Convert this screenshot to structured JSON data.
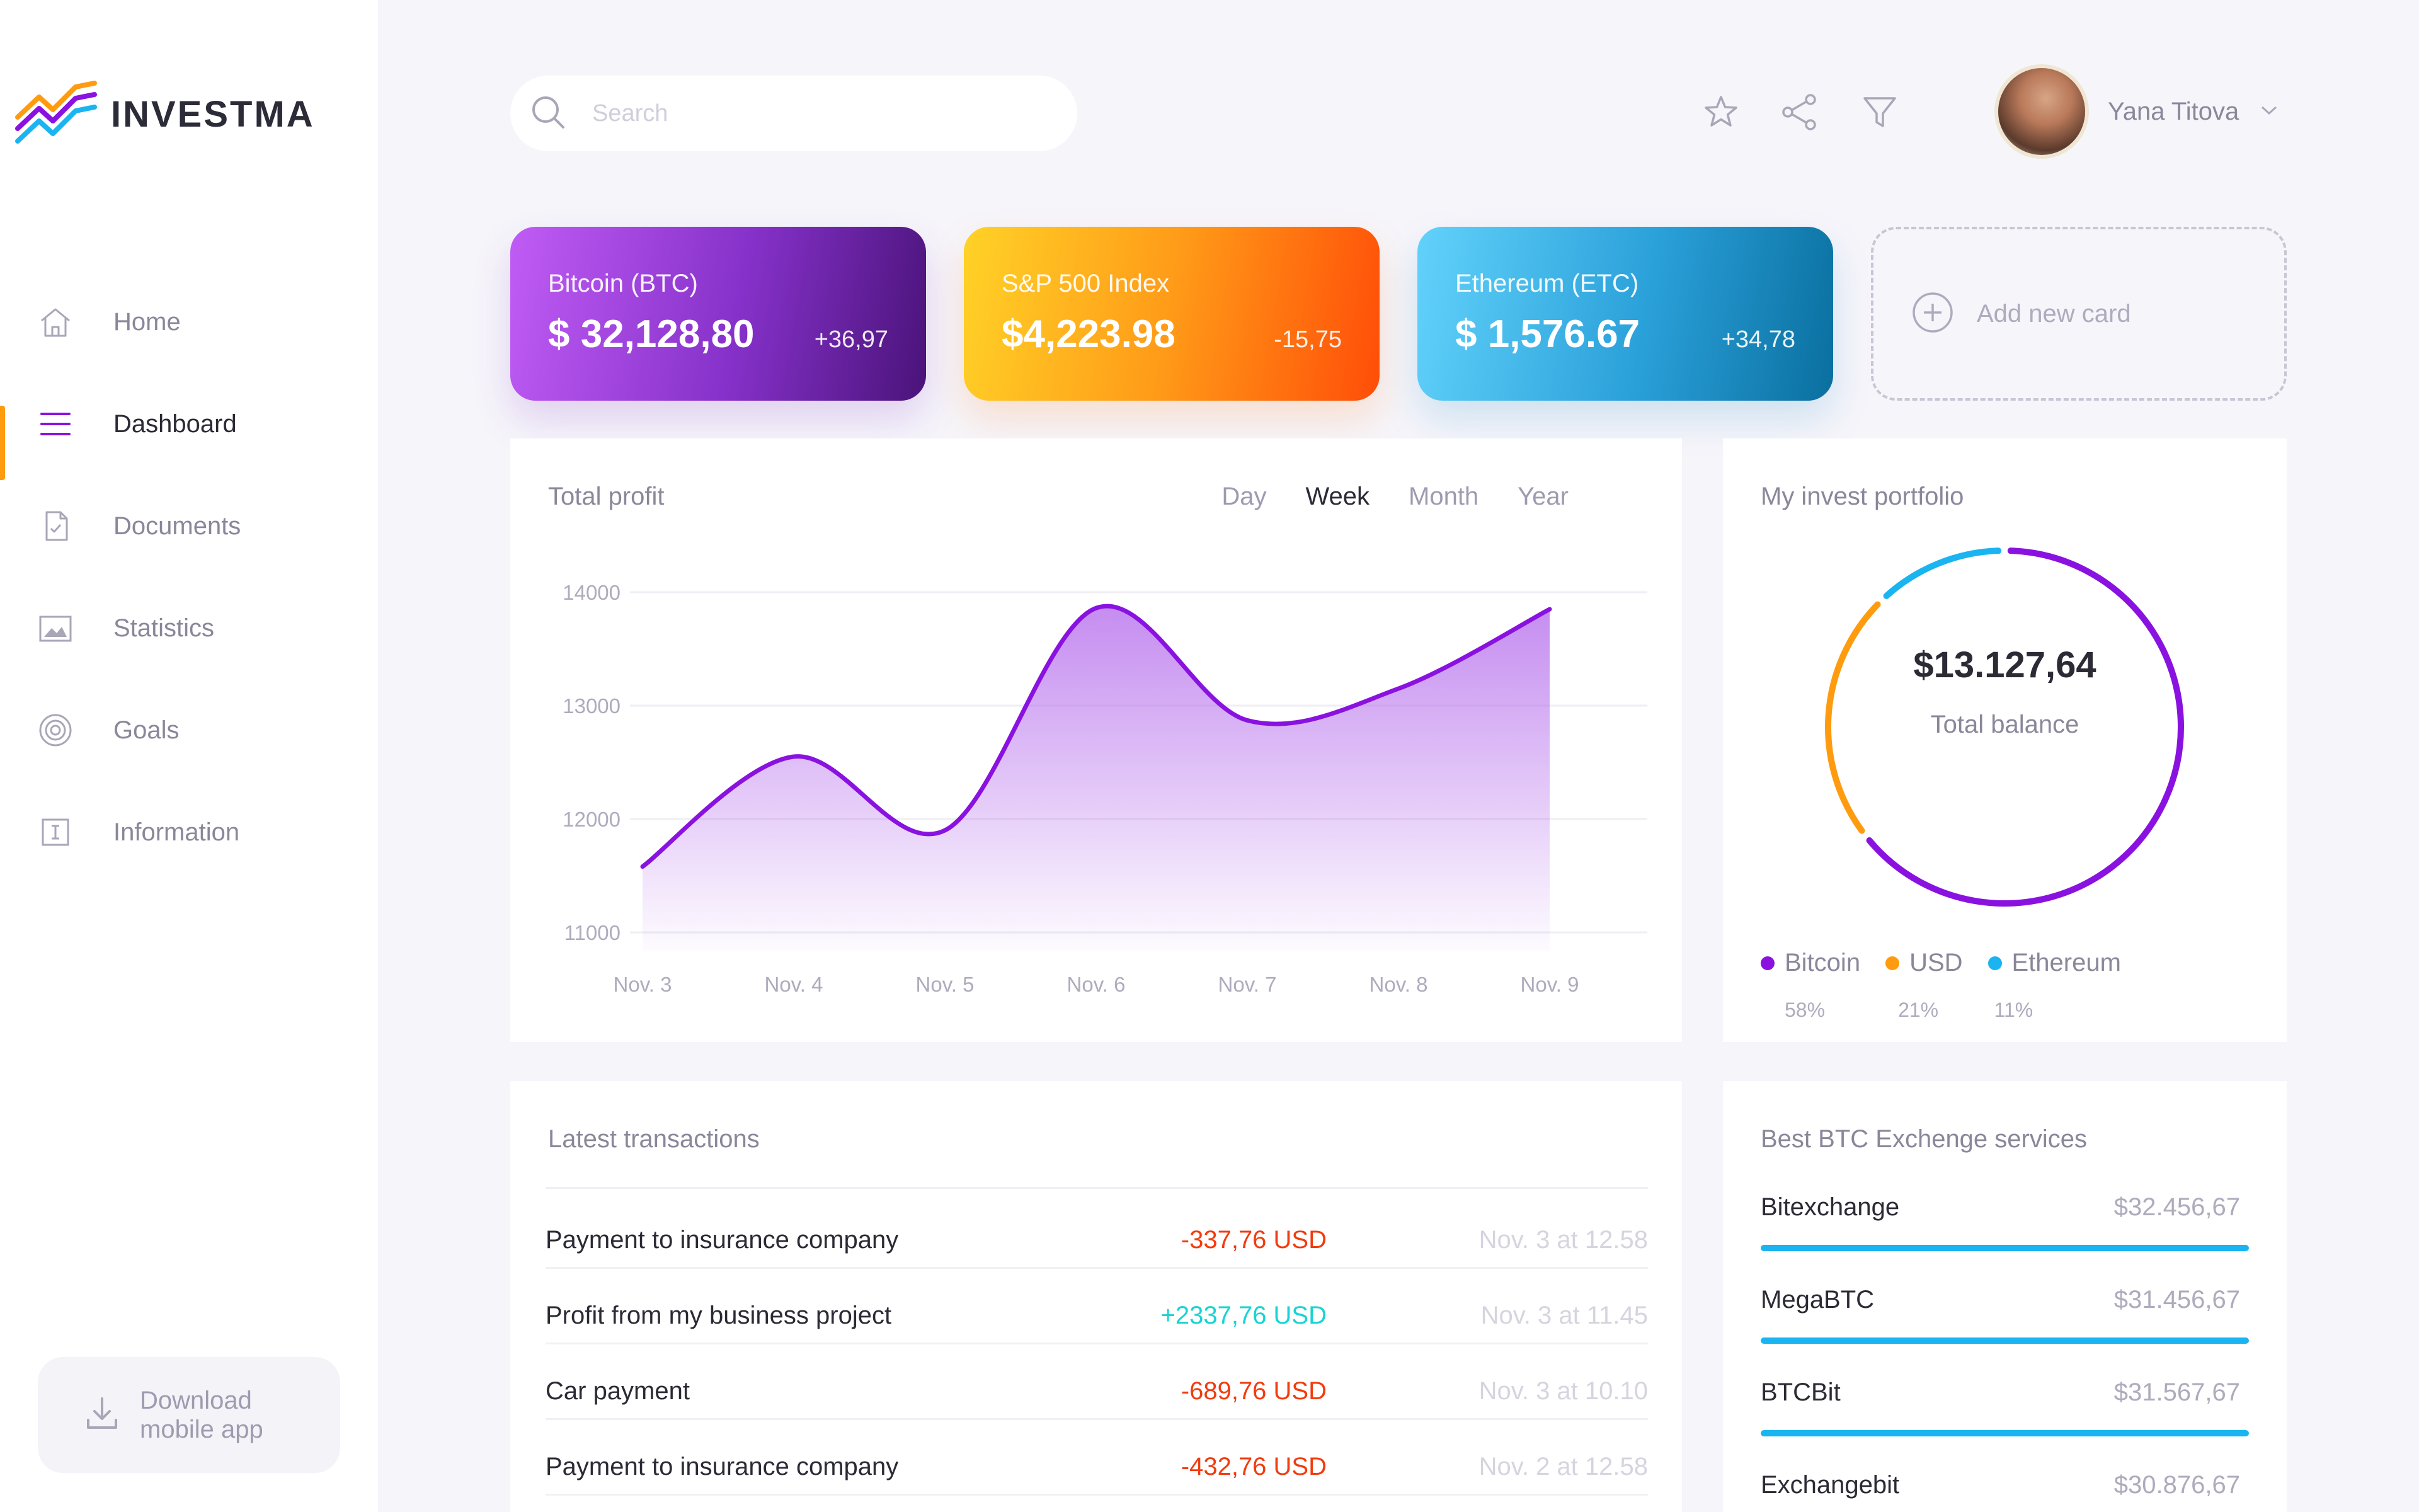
{
  "app": {
    "name": "INVESTMA"
  },
  "sidebar": {
    "items": [
      {
        "label": "Home",
        "icon": "home-icon",
        "active": false
      },
      {
        "label": "Dashboard",
        "icon": "menu-icon",
        "active": true
      },
      {
        "label": "Documents",
        "icon": "document-icon",
        "active": false
      },
      {
        "label": "Statistics",
        "icon": "image-icon",
        "active": false
      },
      {
        "label": "Goals",
        "icon": "target-icon",
        "active": false
      },
      {
        "label": "Information",
        "icon": "info-icon",
        "active": false
      }
    ],
    "download_label": "Download mobile app"
  },
  "header": {
    "search_placeholder": "Search",
    "icons": [
      "star-icon",
      "share-icon",
      "filter-icon"
    ],
    "user_name": "Yana Titova"
  },
  "cards": [
    {
      "name": "Bitcoin (BTC)",
      "price": "$ 32,128,80",
      "change": "+36,97"
    },
    {
      "name": "S&P 500 Index",
      "price": "$4,223.98",
      "change": "-15,75"
    },
    {
      "name": "Ethereum (ETC)",
      "price": "$ 1,576.67",
      "change": "+34,78"
    }
  ],
  "add_card_label": "Add new card",
  "profit": {
    "title": "Total profit",
    "periods": [
      "Day",
      "Week",
      "Month",
      "Year"
    ],
    "active_period": "Week"
  },
  "chart_data": {
    "type": "area",
    "title": "Total profit",
    "x": [
      "Nov. 3",
      "Nov. 4",
      "Nov. 5",
      "Nov. 6",
      "Nov. 7",
      "Nov. 8",
      "Nov. 9"
    ],
    "y_ticks": [
      14000,
      13000,
      12000,
      11000
    ],
    "ylim": [
      11000,
      14000
    ],
    "series": [
      {
        "values": [
          11580,
          12550,
          11900,
          13860,
          12870,
          13150,
          13850
        ]
      }
    ],
    "grid": true,
    "color": "#8a12e0"
  },
  "portfolio": {
    "title": "My invest portfolio",
    "total_value": "$13.127,64",
    "total_label": "Total balance",
    "segments": [
      {
        "name": "Bitcoin",
        "percent": 58,
        "percent_label": "58%",
        "color": "#8a12e0"
      },
      {
        "name": "USD",
        "percent": 21,
        "percent_label": "21%",
        "color": "#ff9b0f"
      },
      {
        "name": "Ethereum",
        "percent": 11,
        "percent_label": "11%",
        "color": "#1ab4f0"
      }
    ]
  },
  "transactions": {
    "title": "Latest transactions",
    "rows": [
      {
        "desc": "Payment to insurance company",
        "amount": "-337,76 USD",
        "date": "Nov. 3 at 12.58",
        "type": "neg"
      },
      {
        "desc": "Profit from my business project",
        "amount": "+2337,76 USD",
        "date": "Nov. 3 at 11.45",
        "type": "pos"
      },
      {
        "desc": "Car payment",
        "amount": "-689,76 USD",
        "date": "Nov. 3 at 10.10",
        "type": "neg"
      },
      {
        "desc": "Payment to insurance company",
        "amount": "-432,76 USD",
        "date": "Nov. 2 at 12.58",
        "type": "neg"
      }
    ]
  },
  "exchange": {
    "title": "Best BTC Exchenge services",
    "rows": [
      {
        "name": "Bitexchange",
        "value": "$32.456,67"
      },
      {
        "name": "MegaBTC",
        "value": "$31.456,67"
      },
      {
        "name": "BTCBit",
        "value": "$31.567,67"
      },
      {
        "name": "Exchangebit",
        "value": "$30.876,67"
      }
    ]
  }
}
